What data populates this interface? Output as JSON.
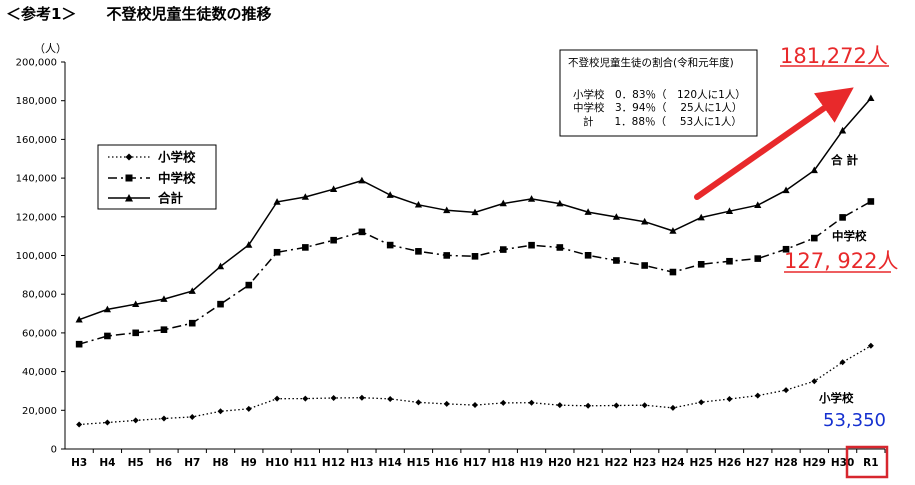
{
  "heading": "＜参考1＞　　不登校児童生徒数の推移",
  "unit_label": "（人）",
  "chart_data": {
    "type": "line",
    "categories": [
      "H3",
      "H4",
      "H5",
      "H6",
      "H7",
      "H8",
      "H9",
      "H10",
      "H11",
      "H12",
      "H13",
      "H14",
      "H15",
      "H16",
      "H17",
      "H18",
      "H19",
      "H20",
      "H21",
      "H22",
      "H23",
      "H24",
      "H25",
      "H26",
      "H27",
      "H28",
      "H29",
      "H30",
      "R1"
    ],
    "y_ticks": [
      0,
      20000,
      40000,
      60000,
      80000,
      100000,
      120000,
      140000,
      160000,
      180000,
      200000
    ],
    "y_tick_labels": [
      "0",
      "20,000",
      "40,000",
      "60,000",
      "80,000",
      "100,000",
      "120,000",
      "140,000",
      "160,000",
      "180,000",
      "200,000"
    ],
    "ylim": [
      0,
      200000
    ],
    "grid": false,
    "legend_position": "left",
    "series": [
      {
        "name": "小学校",
        "style": "dotted-diamond",
        "values": [
          12645,
          13710,
          14769,
          15786,
          16569,
          19498,
          20765,
          26017,
          26047,
          26373,
          26511,
          25869,
          24077,
          23318,
          22709,
          23825,
          23927,
          22652,
          22327,
          22463,
          22622,
          21243,
          24175,
          25864,
          27583,
          30448,
          35032,
          44841,
          53350
        ]
      },
      {
        "name": "中学校",
        "style": "dashdot-square",
        "values": [
          54172,
          58421,
          60039,
          61663,
          65022,
          74853,
          84701,
          101675,
          104180,
          107913,
          112211,
          105383,
          102149,
          100040,
          99578,
          103069,
          105328,
          104153,
          100105,
          97428,
          94836,
          91446,
          95442,
          97033,
          98408,
          103235,
          108999,
          119687,
          127922
        ]
      },
      {
        "name": "合計",
        "style": "solid-triangle",
        "values": [
          66817,
          72131,
          74808,
          77449,
          81591,
          94351,
          105466,
          127692,
          130227,
          134286,
          138722,
          131252,
          126226,
          123358,
          122287,
          126894,
          129255,
          126805,
          122432,
          119891,
          117458,
          112689,
          119617,
          122897,
          125991,
          133683,
          144031,
          164528,
          181272
        ]
      }
    ]
  },
  "legend": {
    "items": [
      "小学校",
      "中学校",
      "合計"
    ]
  },
  "ratio_box": {
    "title": "不登校児童生徒の割合(令和元年度)",
    "rows": [
      "小学校　0．83％（　120人に1人）",
      "中学校　3．94％（　 25人に1人）",
      "計　　1．88％（　 53人に1人）"
    ]
  },
  "series_labels": {
    "total": "合 計",
    "middle": "中学校",
    "elementary": "小学校"
  },
  "highlights": {
    "total_value": "181,272人",
    "middle_value": "127, 922人",
    "elementary_value": "53,350",
    "red": "#e8292b",
    "blue": "#1530d0"
  }
}
